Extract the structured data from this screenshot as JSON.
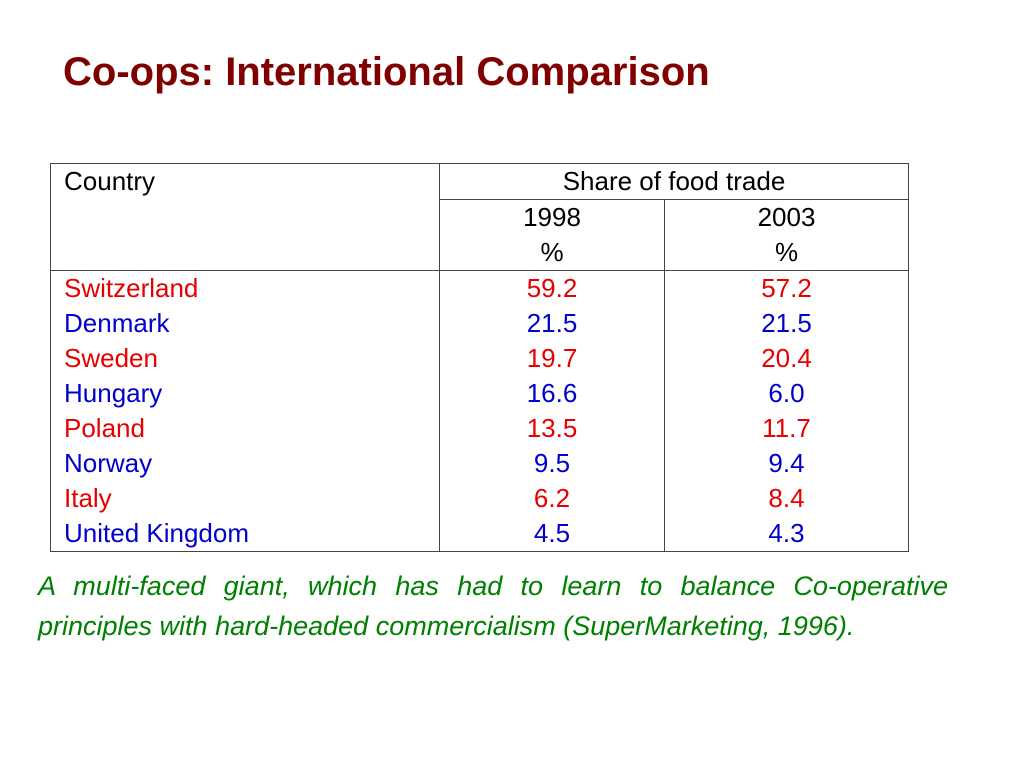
{
  "title": "Co-ops: International Comparison",
  "table": {
    "header": {
      "country": "Country",
      "group": "Share of food trade",
      "years": [
        {
          "year": "1998",
          "unit": "%"
        },
        {
          "year": "2003",
          "unit": "%"
        }
      ]
    },
    "rows": [
      {
        "country": "Switzerland",
        "v1998": "59.2",
        "v2003": "57.2",
        "color": "#e60000"
      },
      {
        "country": "Denmark",
        "v1998": "21.5",
        "v2003": "21.5",
        "color": "#0000cc"
      },
      {
        "country": "Sweden",
        "v1998": "19.7",
        "v2003": "20.4",
        "color": "#e60000"
      },
      {
        "country": "Hungary",
        "v1998": "16.6",
        "v2003": "6.0",
        "color": "#0000cc"
      },
      {
        "country": "Poland",
        "v1998": "13.5",
        "v2003": "11.7",
        "color": "#e60000"
      },
      {
        "country": "Norway",
        "v1998": "9.5",
        "v2003": "9.4",
        "color": "#0000cc"
      },
      {
        "country": "Italy",
        "v1998": "6.2",
        "v2003": "8.4",
        "color": "#e60000"
      },
      {
        "country": "United Kingdom",
        "v1998": "4.5",
        "v2003": "4.3",
        "color": "#0000cc"
      }
    ]
  },
  "caption": "A multi-faced giant, which has had to learn to balance Co-operative principles with hard-headed commercialism (SuperMarketing, 1996).",
  "colors": {
    "title": "#800000",
    "caption": "#008000",
    "odd_row": "#e60000",
    "even_row": "#0000cc"
  }
}
